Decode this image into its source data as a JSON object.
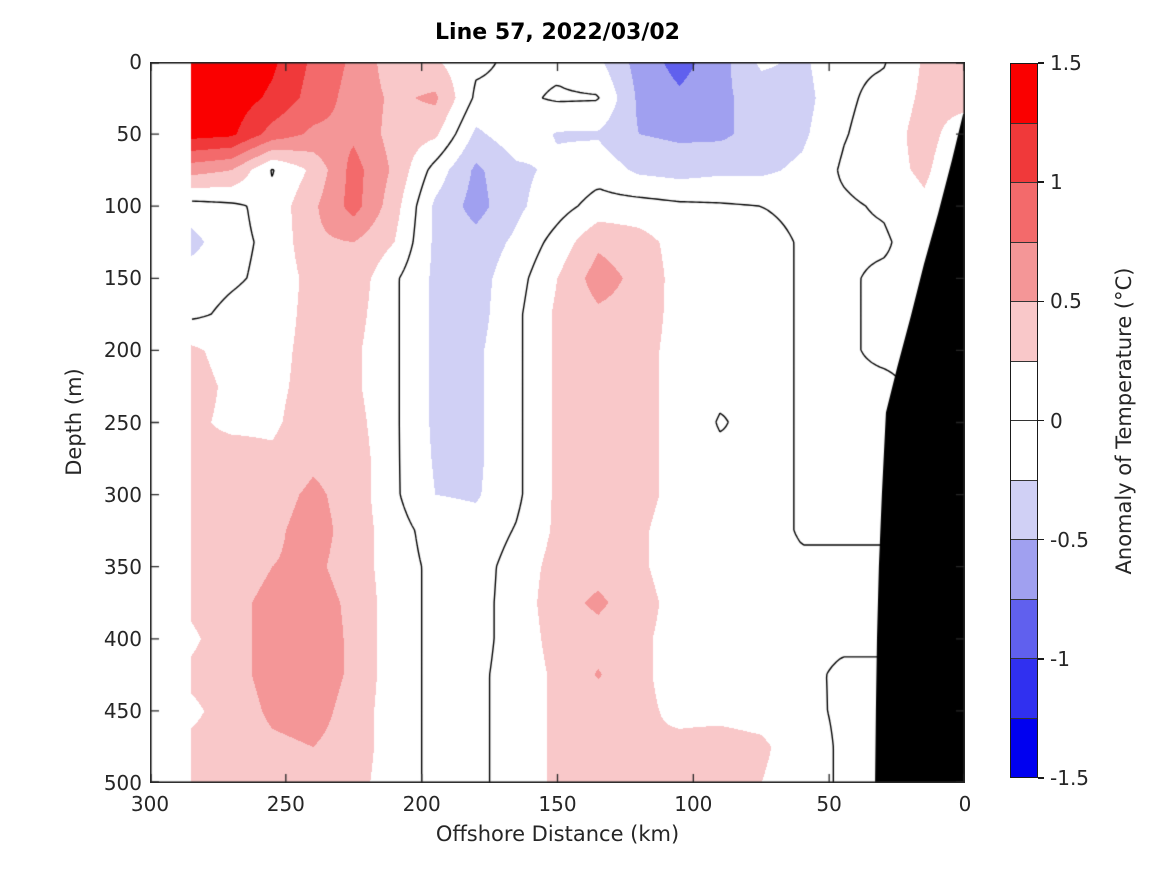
{
  "title": "Line 57, 2022/03/02",
  "xlabel": "Offshore Distance (km)",
  "ylabel": "Depth (m)",
  "axes": {
    "x_ticks": [
      300,
      250,
      200,
      150,
      100,
      50,
      0
    ],
    "y_ticks": [
      0,
      50,
      100,
      150,
      200,
      250,
      300,
      350,
      400,
      450,
      500
    ],
    "x_range": [
      300,
      0
    ],
    "y_range": [
      0,
      500
    ]
  },
  "colorbar": {
    "label": "Anomaly of Temperature (°C)",
    "tick_labels": [
      "1.5",
      "1",
      "0.5",
      "0",
      "-0.5",
      "-1",
      "-1.5"
    ],
    "tick_values": [
      1.5,
      1,
      0.5,
      0,
      -0.5,
      -1,
      -1.5
    ],
    "levels": [
      -1.5,
      -1.25,
      -1.0,
      -0.75,
      -0.5,
      -0.25,
      0,
      0.25,
      0.5,
      0.75,
      1.0,
      1.25,
      1.5
    ],
    "colors_top_to_bottom": [
      "#fa0000",
      "#f0393a",
      "#f36a6b",
      "#f49697",
      "#f9c8c9",
      "#ffffff",
      "#ffffff",
      "#d0d0f5",
      "#a0a0f0",
      "#6060ee",
      "#3030f0",
      "#0000f0"
    ],
    "land_color": "#000000"
  },
  "chart_data": {
    "type": "heatmap",
    "subtype": "filled_contour_section",
    "title": "Line 57, 2022/03/02",
    "xlabel": "Offshore Distance (km)",
    "ylabel": "Depth (m)",
    "value_unit": "°C",
    "value_name": "Anomaly of Temperature",
    "zero_contour_level": 0,
    "x_km": [
      285,
      270,
      255,
      240,
      225,
      210,
      195,
      180,
      165,
      150,
      135,
      120,
      105,
      90,
      75,
      60,
      45,
      30,
      15,
      0
    ],
    "depth_m": [
      0,
      25,
      50,
      75,
      100,
      125,
      150,
      175,
      200,
      225,
      250,
      275,
      300,
      325,
      350,
      375,
      400,
      425,
      450,
      475,
      500
    ],
    "anomaly_grid": [
      [
        1.45,
        1.45,
        1.3,
        0.95,
        0.7,
        0.35,
        0.28,
        0.05,
        -0.05,
        -0.05,
        -0.2,
        -0.6,
        -0.85,
        -0.6,
        -0.2,
        -0.3,
        -0.05,
        -0.02,
        0.28,
        0.35
      ],
      [
        1.45,
        1.4,
        1.2,
        0.9,
        0.65,
        0.45,
        0.55,
        -0.05,
        -0.05,
        0.03,
        0.02,
        -0.55,
        -0.7,
        -0.55,
        -0.4,
        -0.35,
        -0.05,
        0.08,
        0.3,
        0.35
      ],
      [
        1.35,
        1.3,
        0.9,
        0.7,
        0.7,
        0.4,
        0.3,
        -0.3,
        -0.1,
        -0.27,
        -0.28,
        -0.5,
        -0.55,
        -0.55,
        -0.4,
        -0.3,
        -0.02,
        0.12,
        0.35,
        0.1
      ],
      [
        0.6,
        0.5,
        -0.02,
        0.3,
        0.85,
        0.45,
        -0.1,
        -0.55,
        -0.3,
        -0.2,
        -0.1,
        -0.3,
        -0.35,
        -0.3,
        -0.3,
        -0.2,
        0.03,
        0.15,
        0.3,
        0.0
      ],
      [
        -0.1,
        -0.05,
        0.08,
        0.45,
        0.85,
        0.35,
        -0.3,
        -0.6,
        -0.3,
        -0.1,
        0.1,
        0.1,
        0.05,
        0.03,
        0.0,
        -0.05,
        -0.04,
        0.03,
        0.2,
        0.0
      ],
      [
        -0.35,
        -0.05,
        0.04,
        0.45,
        0.5,
        0.25,
        -0.3,
        -0.4,
        -0.2,
        0.1,
        0.45,
        0.35,
        0.15,
        0.05,
        0.08,
        -0.02,
        -0.04,
        -0.04,
        0.15,
        0.0
      ],
      [
        -0.1,
        -0.03,
        0.05,
        0.35,
        0.4,
        0.04,
        -0.3,
        -0.35,
        -0.1,
        0.25,
        0.62,
        0.42,
        0.15,
        0.05,
        0.08,
        -0.02,
        -0.04,
        0.05,
        0.05,
        0.0
      ],
      [
        -0.05,
        0.05,
        0.1,
        0.35,
        0.35,
        0.04,
        -0.3,
        -0.35,
        -0.05,
        0.3,
        0.45,
        0.4,
        0.15,
        0.05,
        0.08,
        -0.02,
        -0.04,
        0.05,
        0.05,
        0.0
      ],
      [
        0.3,
        0.15,
        0.15,
        0.35,
        0.3,
        0.04,
        -0.3,
        -0.3,
        -0.05,
        0.3,
        0.4,
        0.35,
        0.15,
        0.05,
        0.08,
        -0.02,
        -0.04,
        0.05,
        0.05,
        0.0
      ],
      [
        0.35,
        0.2,
        0.18,
        0.35,
        0.3,
        0.04,
        -0.3,
        -0.3,
        -0.05,
        0.3,
        0.4,
        0.35,
        0.15,
        0.05,
        0.08,
        -0.02,
        -0.04,
        -0.05,
        0.05,
        0.0
      ],
      [
        0.3,
        0.2,
        0.2,
        0.4,
        0.35,
        0.04,
        -0.3,
        -0.3,
        -0.05,
        0.3,
        0.4,
        0.35,
        0.15,
        -0.02,
        0.08,
        -0.02,
        -0.04,
        0.0,
        0.0,
        0.0
      ],
      [
        0.3,
        0.35,
        0.3,
        0.45,
        0.4,
        0.04,
        -0.28,
        -0.3,
        -0.05,
        0.3,
        0.4,
        0.35,
        0.15,
        0.05,
        0.08,
        -0.02,
        -0.04,
        0.0,
        0.0,
        0.0
      ],
      [
        0.3,
        0.35,
        0.4,
        0.55,
        0.4,
        0.04,
        -0.25,
        -0.28,
        -0.05,
        0.3,
        0.35,
        0.35,
        0.15,
        0.05,
        0.08,
        -0.02,
        -0.04,
        0.0,
        0.0,
        0.0
      ],
      [
        0.3,
        0.4,
        0.45,
        0.6,
        0.4,
        0.1,
        -0.1,
        -0.15,
        0.02,
        0.3,
        0.35,
        0.3,
        0.1,
        0.05,
        0.08,
        -0.02,
        -0.02,
        0.0,
        0.0,
        0.0
      ],
      [
        0.3,
        0.4,
        0.5,
        0.55,
        0.4,
        0.1,
        -0.05,
        -0.1,
        0.1,
        0.35,
        0.4,
        0.3,
        0.1,
        0.05,
        0.08,
        0.03,
        0.03,
        0.0,
        0.0,
        0.0
      ],
      [
        0.3,
        0.45,
        0.55,
        0.6,
        0.45,
        0.1,
        -0.05,
        -0.08,
        0.1,
        0.4,
        0.55,
        0.35,
        0.15,
        0.05,
        0.05,
        0.03,
        0.03,
        0.0,
        0.0,
        0.0
      ],
      [
        0.2,
        0.4,
        0.6,
        0.65,
        0.45,
        0.1,
        -0.05,
        -0.08,
        0.1,
        0.35,
        0.4,
        0.3,
        0.15,
        0.05,
        0.05,
        0.03,
        0.02,
        0.0,
        0.0,
        0.0
      ],
      [
        0.3,
        0.4,
        0.6,
        0.65,
        0.45,
        0.1,
        -0.05,
        -0.05,
        0.1,
        0.3,
        0.52,
        0.3,
        0.15,
        0.05,
        0.05,
        0.03,
        -0.02,
        0.0,
        0.0,
        0.0
      ],
      [
        0.2,
        0.35,
        0.55,
        0.6,
        0.4,
        0.1,
        -0.05,
        -0.05,
        0.1,
        0.3,
        0.35,
        0.3,
        0.2,
        0.18,
        0.15,
        0.05,
        -0.03,
        0.0,
        0.0,
        0.0
      ],
      [
        0.3,
        0.35,
        0.45,
        0.5,
        0.4,
        0.1,
        -0.05,
        -0.05,
        0.1,
        0.3,
        0.3,
        0.25,
        0.3,
        0.35,
        0.3,
        0.1,
        -0.03,
        0.0,
        0.0,
        0.0
      ],
      [
        0.3,
        0.35,
        0.4,
        0.45,
        0.35,
        0.1,
        -0.05,
        -0.05,
        0.1,
        0.3,
        0.3,
        0.28,
        0.3,
        0.35,
        0.25,
        0.1,
        -0.03,
        0.0,
        0.0,
        0.0
      ]
    ],
    "land_polygon_km_depth": [
      [
        0.7,
        36
      ],
      [
        4.8,
        68
      ],
      [
        9.9,
        105
      ],
      [
        15.1,
        140
      ],
      [
        19.9,
        176
      ],
      [
        25.0,
        212
      ],
      [
        29.1,
        243
      ],
      [
        30.6,
        300
      ],
      [
        31.7,
        350
      ],
      [
        32.4,
        400
      ],
      [
        32.8,
        450
      ],
      [
        33.1,
        500
      ],
      [
        0,
        500
      ],
      [
        0,
        36
      ]
    ]
  }
}
